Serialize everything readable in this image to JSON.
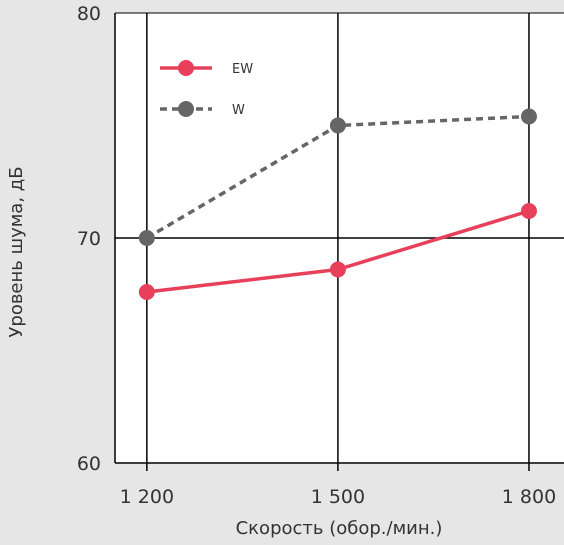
{
  "chart_data": {
    "type": "line",
    "xlabel": "Скорость (обор./мин.)",
    "ylabel": "Уровень шума, дБ",
    "x": [
      1200,
      1500,
      1800
    ],
    "x_tick_labels": [
      "1 200",
      "1 500",
      "1 800"
    ],
    "xlim": [
      1150,
      1855
    ],
    "ylim": [
      60,
      80
    ],
    "y_ticks": [
      60,
      70,
      80
    ],
    "y_tick_labels": [
      "60",
      "70",
      "80"
    ],
    "grid": true,
    "legend_position": "top-left",
    "series": [
      {
        "name": "EW",
        "values": [
          67.6,
          68.6,
          71.2
        ],
        "color": "#e8405a",
        "line_style": "solid"
      },
      {
        "name": "W",
        "values": [
          70.0,
          75.0,
          75.4
        ],
        "color": "#666666",
        "line_style": "dashed"
      }
    ]
  }
}
